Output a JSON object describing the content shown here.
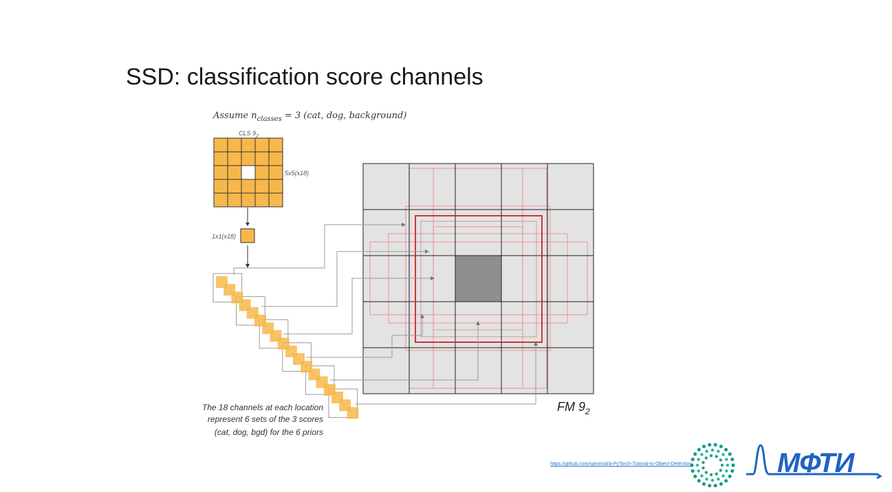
{
  "slide": {
    "title": "SSD: classification score channels"
  },
  "diagram": {
    "assumption_prefix": "Assume n",
    "assumption_sub": "classes",
    "assumption_suffix": " = 3 (cat, dog, background)",
    "cls_label": "CLS 9",
    "cls_label_sub": "2",
    "grid_label": "5x5(x18)",
    "cell_label": "1x1(x18)",
    "fm_label": "FM 9",
    "fm_label_sub": "2",
    "caption_lines": [
      "The 18 channels at each location",
      "represent 6 sets of the 3 scores",
      "(cat, dog, bgd) for the 6 priors"
    ],
    "colors": {
      "orange": "#f7b84b",
      "grid_bg": "#e3e3e3",
      "center_cell": "#8f8f8f",
      "prior_red": "#d21f1f",
      "prior_pink": "#f0a0a0",
      "arrow": "#888888"
    }
  },
  "footer": {
    "link_text": "https://github.com/sgrvinod/a-PyTorch-Tutorial-to-Object-Detection",
    "logo_text": "МФТИ"
  }
}
